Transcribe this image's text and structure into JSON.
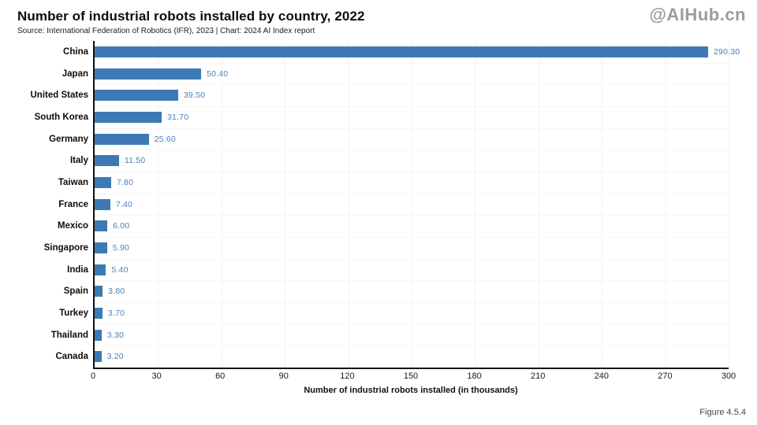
{
  "header": {
    "title": "Number of industrial robots installed by country, 2022",
    "source": "Source: International Federation of Robotics (IFR), 2023 | Chart: 2024 AI Index report",
    "watermark": "@AIHub.cn"
  },
  "footer": {
    "figure_label": "Figure 4.5.4"
  },
  "colors": {
    "bar": "#3d7ab5",
    "value_label": "#4a80ba",
    "axis": "#111111",
    "grid": "#f2f2f2",
    "watermark": "#9c9c9c"
  },
  "chart_data": {
    "type": "bar",
    "orientation": "horizontal",
    "title": "Number of industrial robots installed by country, 2022",
    "categories": [
      "China",
      "Japan",
      "United States",
      "South Korea",
      "Germany",
      "Italy",
      "Taiwan",
      "France",
      "Mexico",
      "Singapore",
      "India",
      "Spain",
      "Turkey",
      "Thailand",
      "Canada"
    ],
    "values": [
      290.3,
      50.4,
      39.5,
      31.7,
      25.6,
      11.5,
      7.8,
      7.4,
      6.0,
      5.9,
      5.4,
      3.8,
      3.7,
      3.3,
      3.2
    ],
    "value_labels": [
      "290.30",
      "50.40",
      "39.50",
      "31.70",
      "25.60",
      "11.50",
      "7.80",
      "7.40",
      "6.00",
      "5.90",
      "5.40",
      "3.80",
      "3.70",
      "3.30",
      "3.20"
    ],
    "xlabel": "Number of industrial robots installed (in thousands)",
    "xticks": [
      0,
      30,
      60,
      90,
      120,
      150,
      180,
      210,
      240,
      270,
      300
    ],
    "xlim": [
      0,
      300
    ],
    "grid": true,
    "legend": "none"
  }
}
